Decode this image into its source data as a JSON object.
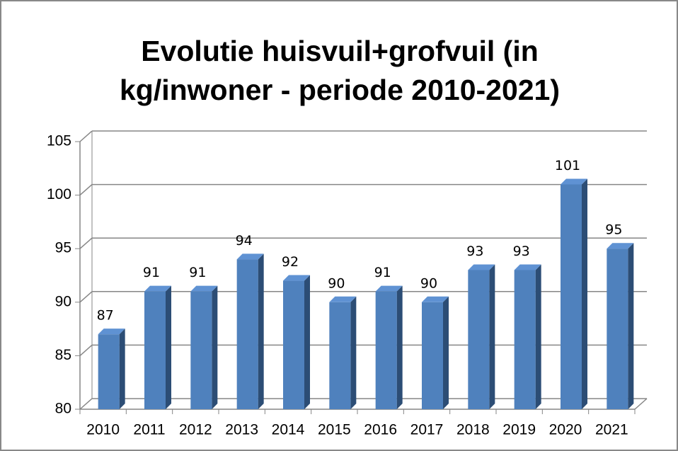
{
  "chart_data": {
    "type": "bar3d",
    "title": [
      "Evolutie huisvuil+grofvuil (in",
      "kg/inwoner - periode 2010-2021)"
    ],
    "categories": [
      "2010",
      "2011",
      "2012",
      "2013",
      "2014",
      "2015",
      "2016",
      "2017",
      "2018",
      "2019",
      "2020",
      "2021"
    ],
    "values": [
      87,
      91,
      91,
      94,
      92,
      90,
      91,
      90,
      93,
      93,
      101,
      95
    ],
    "color": "#4f81bd",
    "ylim": [
      80,
      105
    ],
    "yticks": [
      80,
      85,
      90,
      95,
      100,
      105
    ],
    "grid": true
  }
}
